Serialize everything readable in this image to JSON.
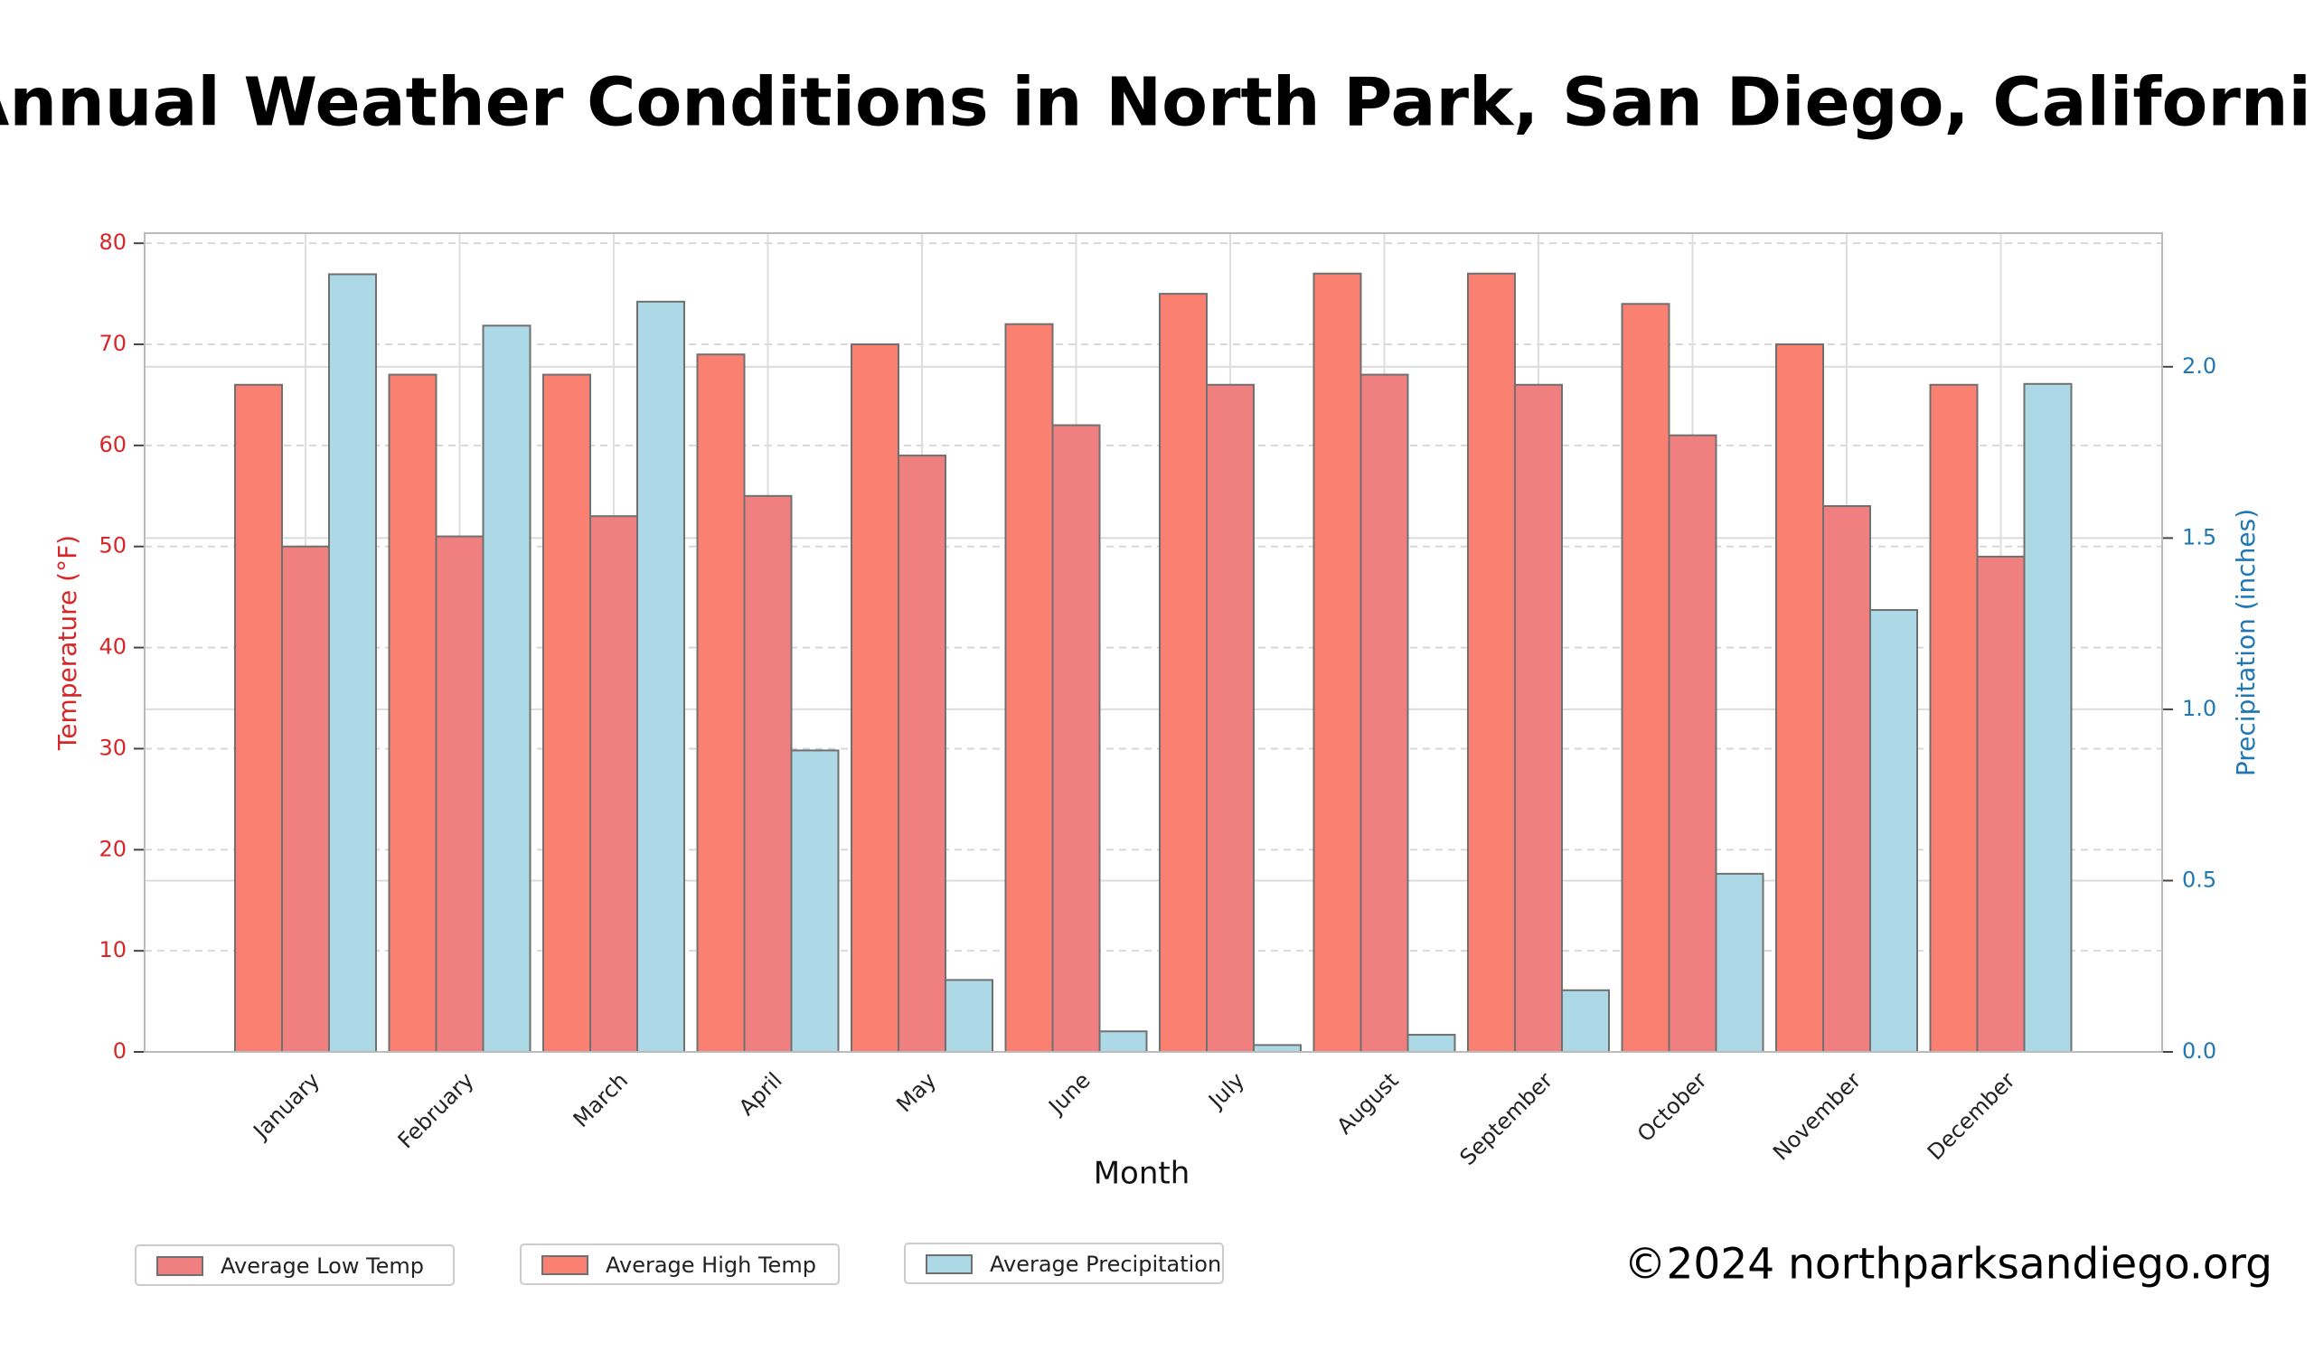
{
  "chart_data": {
    "type": "bar",
    "title": "Annual Weather Conditions in North Park, San Diego, California",
    "x_label": "Month",
    "y_label": "Temperature (°F)",
    "y2_label": "Precipitation (inches)",
    "footer": "©2024 northparksandiego.org",
    "categories": [
      "January",
      "February",
      "March",
      "April",
      "May",
      "June",
      "July",
      "August",
      "September",
      "October",
      "November",
      "December"
    ],
    "series": [
      {
        "name": "Average Low Temp",
        "color": "#f08080",
        "values": [
          50,
          51,
          53,
          55,
          59,
          62,
          66,
          67,
          66,
          61,
          54,
          49
        ]
      },
      {
        "name": "Average High Temp",
        "color": "#fa8072",
        "values": [
          66,
          67,
          67,
          69,
          70,
          72,
          75,
          77,
          77,
          74,
          70,
          66
        ]
      },
      {
        "name": "Average Precipitation",
        "color": "#add8e6",
        "axis": "y2",
        "values": [
          2.27,
          2.12,
          2.19,
          0.88,
          0.21,
          0.06,
          0.02,
          0.05,
          0.18,
          0.52,
          1.29,
          1.95
        ]
      }
    ],
    "ylim": [
      0,
      81
    ],
    "yticks": [
      0,
      10,
      20,
      30,
      40,
      50,
      60,
      70,
      80
    ],
    "y2lim": [
      0,
      2.39
    ],
    "y2ticks": [
      {
        "value": 0,
        "label": "0.0"
      },
      0.5,
      {
        "value": 1,
        "label": "1.0"
      },
      1.5,
      {
        "value": 2,
        "label": "2.0"
      }
    ],
    "y_color": "#d62728",
    "y2_color": "#1f77b4",
    "grid": true,
    "legend": "bottom-left"
  }
}
